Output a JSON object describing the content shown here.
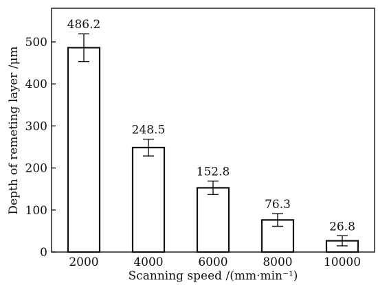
{
  "chart_data": {
    "type": "bar",
    "categories": [
      "2000",
      "4000",
      "6000",
      "8000",
      "10000"
    ],
    "values": [
      486.2,
      248.5,
      152.8,
      76.3,
      26.8
    ],
    "value_labels": [
      "486.2",
      "248.5",
      "152.8",
      "76.3",
      "26.8"
    ],
    "errors": [
      33,
      20,
      16,
      15,
      12
    ],
    "xlabel": "Scanning speed /(mm·min⁻¹)",
    "ylabel": "Depth of remeting layer /μm",
    "ylim": [
      0,
      580
    ],
    "yticks": [
      0,
      100,
      200,
      300,
      400,
      500
    ],
    "ytick_labels": [
      "0",
      "100",
      "200",
      "300",
      "400",
      "500"
    ],
    "grid": false,
    "colors": {
      "bar_fill": "#ffffff",
      "bar_stroke": "#111111"
    }
  }
}
